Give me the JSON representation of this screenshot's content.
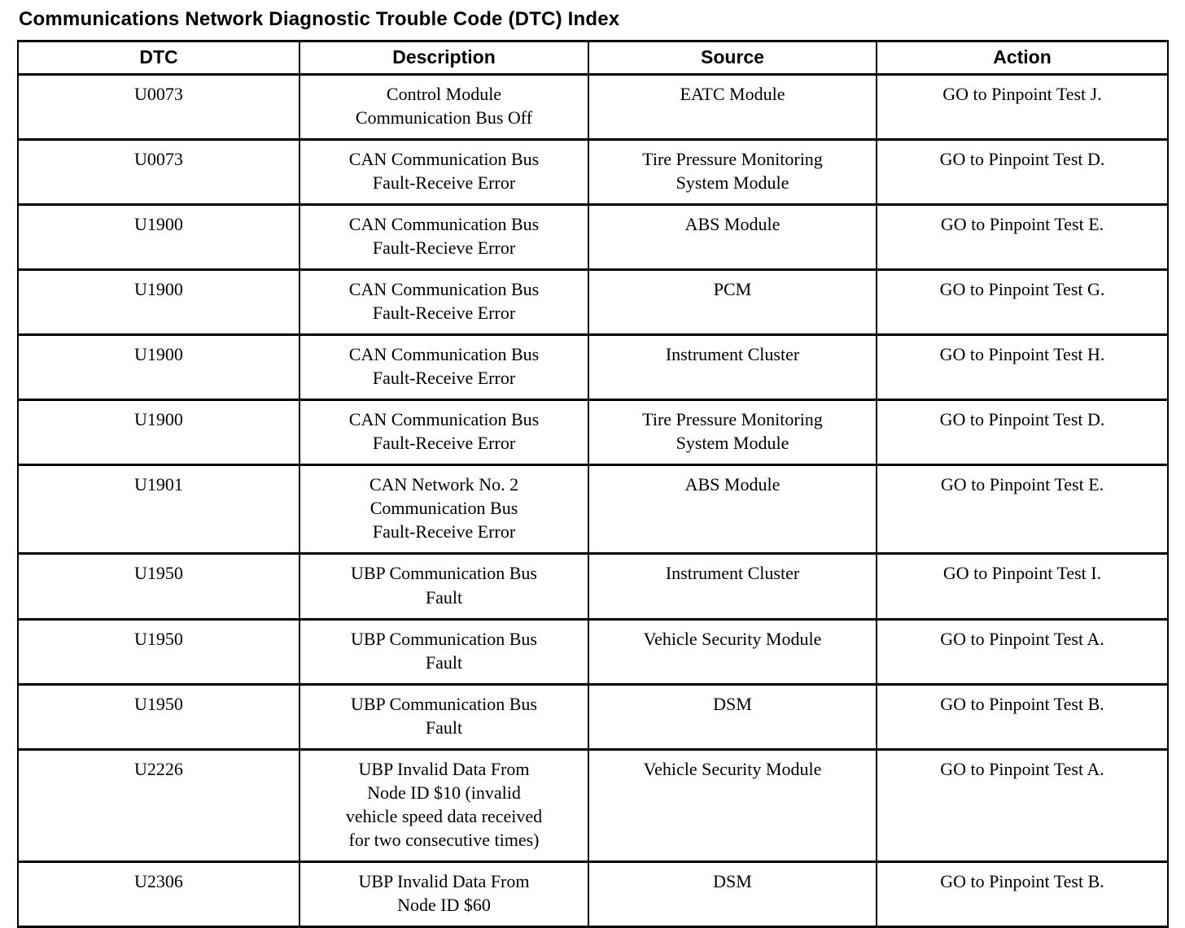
{
  "page": {
    "title": "Communications Network Diagnostic Trouble Code (DTC) Index"
  },
  "table": {
    "columns": [
      "DTC",
      "Description",
      "Source",
      "Action"
    ],
    "rows": [
      {
        "dtc": "U0073",
        "description": "Control Module\nCommunication Bus Off",
        "source": "EATC Module",
        "action": "GO to Pinpoint Test J."
      },
      {
        "dtc": "U0073",
        "description": "CAN Communication Bus\nFault-Receive Error",
        "source": "Tire Pressure Monitoring\nSystem Module",
        "action": "GO to Pinpoint Test D."
      },
      {
        "dtc": "U1900",
        "description": "CAN Communication Bus\nFault-Recieve Error",
        "source": "ABS Module",
        "action": "GO to Pinpoint Test E."
      },
      {
        "dtc": "U1900",
        "description": "CAN Communication Bus\nFault-Receive Error",
        "source": "PCM",
        "action": "GO to Pinpoint Test G."
      },
      {
        "dtc": "U1900",
        "description": "CAN Communication Bus\nFault-Receive Error",
        "source": "Instrument Cluster",
        "action": "GO to Pinpoint Test H."
      },
      {
        "dtc": "U1900",
        "description": "CAN Communication Bus\nFault-Receive Error",
        "source": "Tire Pressure Monitoring\nSystem Module",
        "action": "GO to Pinpoint Test D."
      },
      {
        "dtc": "U1901",
        "description": "CAN Network No. 2\nCommunication Bus\nFault-Receive Error",
        "source": "ABS Module",
        "action": "GO to Pinpoint Test E."
      },
      {
        "dtc": "U1950",
        "description": "UBP Communication Bus\nFault",
        "source": "Instrument Cluster",
        "action": "GO to Pinpoint Test I."
      },
      {
        "dtc": "U1950",
        "description": "UBP Communication Bus\nFault",
        "source": "Vehicle Security Module",
        "action": "GO to Pinpoint Test A."
      },
      {
        "dtc": "U1950",
        "description": "UBP Communication Bus\nFault",
        "source": "DSM",
        "action": "GO to Pinpoint Test B."
      },
      {
        "dtc": "U2226",
        "description": "UBP Invalid Data From\nNode ID $10 (invalid\nvehicle speed data received\nfor two consecutive times)",
        "source": "Vehicle Security Module",
        "action": "GO to Pinpoint Test A."
      },
      {
        "dtc": "U2306",
        "description": "UBP Invalid Data From\nNode ID $60",
        "source": "DSM",
        "action": "GO to Pinpoint Test B."
      }
    ]
  }
}
